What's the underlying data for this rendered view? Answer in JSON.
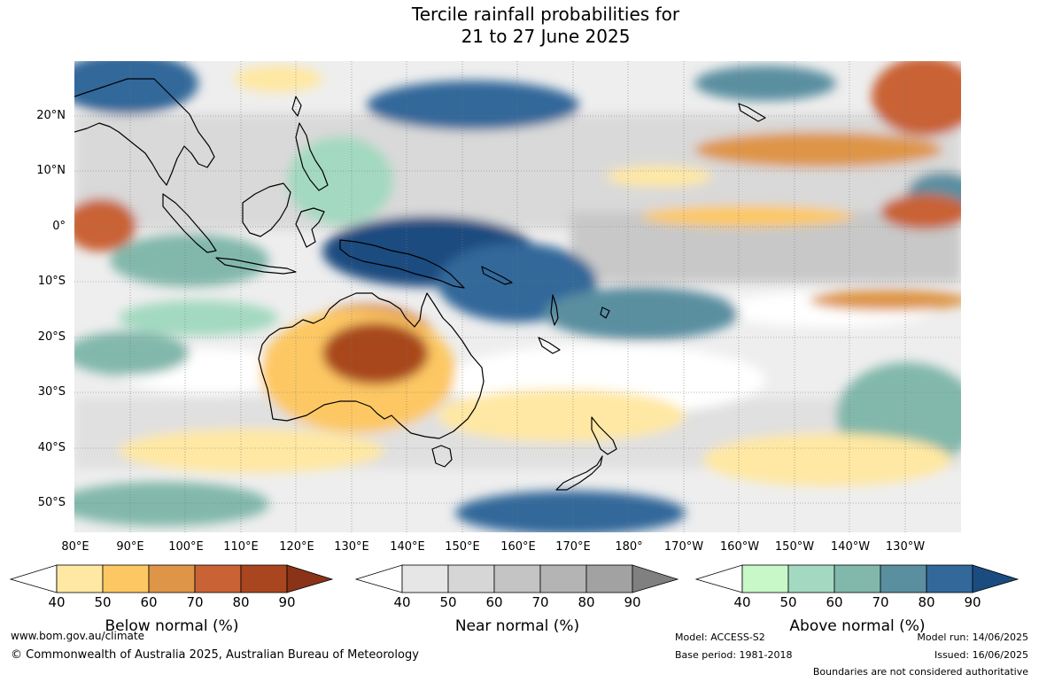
{
  "title_line1": "Tercile rainfall probabilities for",
  "title_line2": "21 to 27 June 2025",
  "lat_labels": [
    "20°N",
    "10°N",
    "0°",
    "10°S",
    "20°S",
    "30°S",
    "40°S",
    "50°S"
  ],
  "lon_labels": [
    "80°E",
    "90°E",
    "100°E",
    "110°E",
    "120°E",
    "130°E",
    "140°E",
    "150°E",
    "160°E",
    "170°E",
    "180°",
    "170°W",
    "160°W",
    "150°W",
    "140°W",
    "130°W"
  ],
  "colorbars": [
    {
      "name": "below",
      "title": "Below normal (%)",
      "ticks": [
        "40",
        "50",
        "60",
        "70",
        "80",
        "90"
      ],
      "colors": [
        "#ffffff",
        "#ffe8a3",
        "#fdc863",
        "#de9547",
        "#c96235",
        "#a9461f",
        "#8a3318"
      ]
    },
    {
      "name": "near",
      "title": "Near normal (%)",
      "ticks": [
        "40",
        "50",
        "60",
        "70",
        "80",
        "90"
      ],
      "colors": [
        "#ffffff",
        "#e6e6e6",
        "#d6d6d6",
        "#c4c4c4",
        "#b4b4b4",
        "#a2a2a2",
        "#808080"
      ]
    },
    {
      "name": "above",
      "title": "Above normal (%)",
      "ticks": [
        "40",
        "50",
        "60",
        "70",
        "80",
        "90"
      ],
      "colors": [
        "#ffffff",
        "#c8f7c8",
        "#a3d9c0",
        "#82b8ab",
        "#5a8fa0",
        "#33689a",
        "#1a4c80"
      ]
    }
  ],
  "footer": {
    "website": "www.bom.gov.au/climate",
    "copyright": "© Commonwealth of Australia 2025, Australian Bureau of Meteorology",
    "model": "Model: ACCESS-S2",
    "base_period": "Base period: 1981-2018",
    "model_run": "Model run: 14/06/2025",
    "issued": "Issued: 16/06/2025",
    "disclaimer": "Boundaries are not considered authoritative"
  }
}
